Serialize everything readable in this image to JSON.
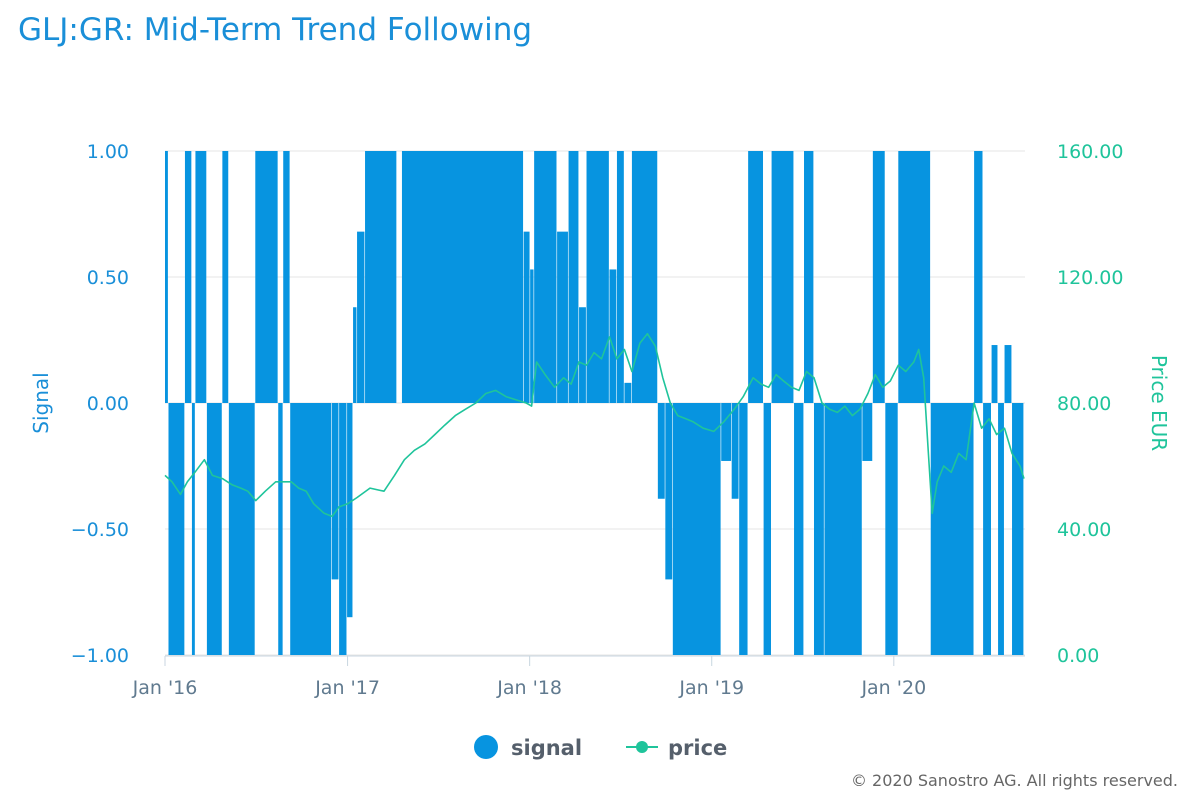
{
  "colors": {
    "signal": "#0794e0",
    "price": "#1fc49b",
    "title": "#1a8fd8",
    "grid": "#e6e6e6",
    "axis_text": "#1a8fd8",
    "x_text": "#607a8f"
  },
  "copyright": "© 2020 Sanostro AG. All rights reserved.",
  "chart_data": {
    "type": "bar+line",
    "title": "GLJ:GR: Mid-Term Trend Following",
    "y_left": {
      "label": "Signal",
      "range": [
        -1,
        1
      ],
      "ticks": [
        "1.00",
        "0.50",
        "0.00",
        "−0.50",
        "−1.00"
      ]
    },
    "y_right": {
      "label": "Price EUR",
      "range": [
        0,
        160
      ],
      "ticks": [
        "160.00",
        "120.00",
        "80.00",
        "40.00",
        "0.00"
      ]
    },
    "x_axis": {
      "range": [
        "2016-01-01",
        "2020-09-20"
      ],
      "ticks": [
        {
          "date": "2016-01-01",
          "label": "Jan '16"
        },
        {
          "date": "2017-01-01",
          "label": "Jan '17"
        },
        {
          "date": "2018-01-01",
          "label": "Jan '18"
        },
        {
          "date": "2019-01-01",
          "label": "Jan '19"
        },
        {
          "date": "2020-01-01",
          "label": "Jan '20"
        }
      ]
    },
    "legend": {
      "position": "bottom-center",
      "items": [
        "signal",
        "price"
      ]
    },
    "series": [
      {
        "name": "signal",
        "type": "column",
        "segments": [
          {
            "from": "2016-01-01",
            "to": "2016-01-08",
            "value": 1
          },
          {
            "from": "2016-01-08",
            "to": "2016-02-10",
            "value": -1
          },
          {
            "from": "2016-02-10",
            "to": "2016-02-24",
            "value": 1
          },
          {
            "from": "2016-02-24",
            "to": "2016-03-02",
            "value": -1
          },
          {
            "from": "2016-03-02",
            "to": "2016-03-25",
            "value": 1
          },
          {
            "from": "2016-03-25",
            "to": "2016-04-25",
            "value": -1
          },
          {
            "from": "2016-04-25",
            "to": "2016-05-08",
            "value": 1
          },
          {
            "from": "2016-05-08",
            "to": "2016-06-30",
            "value": -1
          },
          {
            "from": "2016-06-30",
            "to": "2016-08-15",
            "value": 1
          },
          {
            "from": "2016-08-15",
            "to": "2016-08-25",
            "value": -1
          },
          {
            "from": "2016-08-25",
            "to": "2016-09-08",
            "value": 1
          },
          {
            "from": "2016-09-08",
            "to": "2016-11-30",
            "value": -1
          },
          {
            "from": "2016-11-30",
            "to": "2016-12-15",
            "value": -0.7
          },
          {
            "from": "2016-12-15",
            "to": "2016-12-31",
            "value": -1
          },
          {
            "from": "2016-12-31",
            "to": "2017-01-12",
            "value": -0.85
          },
          {
            "from": "2017-01-12",
            "to": "2017-01-20",
            "value": 0.38
          },
          {
            "from": "2017-01-20",
            "to": "2017-02-05",
            "value": 0.68
          },
          {
            "from": "2017-02-05",
            "to": "2017-04-10",
            "value": 1
          },
          {
            "from": "2017-04-10",
            "to": "2017-04-20",
            "value": 0
          },
          {
            "from": "2017-04-20",
            "to": "2017-12-20",
            "value": 1
          },
          {
            "from": "2017-12-20",
            "to": "2018-01-02",
            "value": 0.68
          },
          {
            "from": "2018-01-02",
            "to": "2018-01-10",
            "value": 0.53
          },
          {
            "from": "2018-01-10",
            "to": "2018-02-25",
            "value": 1
          },
          {
            "from": "2018-02-25",
            "to": "2018-03-20",
            "value": 0.68
          },
          {
            "from": "2018-03-20",
            "to": "2018-04-10",
            "value": 1
          },
          {
            "from": "2018-04-10",
            "to": "2018-04-25",
            "value": 0.38
          },
          {
            "from": "2018-04-25",
            "to": "2018-06-10",
            "value": 1
          },
          {
            "from": "2018-06-10",
            "to": "2018-06-25",
            "value": 0.53
          },
          {
            "from": "2018-06-25",
            "to": "2018-07-10",
            "value": 1
          },
          {
            "from": "2018-07-10",
            "to": "2018-07-25",
            "value": 0.08
          },
          {
            "from": "2018-07-25",
            "to": "2018-09-15",
            "value": 1
          },
          {
            "from": "2018-09-15",
            "to": "2018-09-30",
            "value": -0.38
          },
          {
            "from": "2018-09-30",
            "to": "2018-10-15",
            "value": -0.7
          },
          {
            "from": "2018-10-15",
            "to": "2019-01-20",
            "value": -1
          },
          {
            "from": "2019-01-20",
            "to": "2019-02-10",
            "value": -0.23
          },
          {
            "from": "2019-02-10",
            "to": "2019-02-25",
            "value": -0.38
          },
          {
            "from": "2019-02-25",
            "to": "2019-03-15",
            "value": -1
          },
          {
            "from": "2019-03-15",
            "to": "2019-04-15",
            "value": 1
          },
          {
            "from": "2019-04-15",
            "to": "2019-05-01",
            "value": -1
          },
          {
            "from": "2019-05-01",
            "to": "2019-06-15",
            "value": 1
          },
          {
            "from": "2019-06-15",
            "to": "2019-07-05",
            "value": -1
          },
          {
            "from": "2019-07-05",
            "to": "2019-07-25",
            "value": 1
          },
          {
            "from": "2019-07-25",
            "to": "2019-08-15",
            "value": -1
          },
          {
            "from": "2019-08-15",
            "to": "2019-10-30",
            "value": -1
          },
          {
            "from": "2019-10-30",
            "to": "2019-11-20",
            "value": -0.23
          },
          {
            "from": "2019-11-20",
            "to": "2019-12-15",
            "value": 1
          },
          {
            "from": "2019-12-15",
            "to": "2020-01-10",
            "value": -1
          },
          {
            "from": "2020-01-10",
            "to": "2020-03-15",
            "value": 1
          },
          {
            "from": "2020-03-15",
            "to": "2020-06-10",
            "value": -1
          },
          {
            "from": "2020-06-10",
            "to": "2020-06-28",
            "value": 1
          },
          {
            "from": "2020-06-28",
            "to": "2020-07-15",
            "value": -1
          },
          {
            "from": "2020-07-15",
            "to": "2020-07-28",
            "value": 0.23
          },
          {
            "from": "2020-07-28",
            "to": "2020-08-10",
            "value": -1
          },
          {
            "from": "2020-08-10",
            "to": "2020-08-25",
            "value": 0.23
          },
          {
            "from": "2020-08-25",
            "to": "2020-09-18",
            "value": -1
          }
        ]
      },
      {
        "name": "price",
        "type": "line",
        "points": [
          [
            "2016-01-01",
            57
          ],
          [
            "2016-01-15",
            55
          ],
          [
            "2016-02-01",
            51
          ],
          [
            "2016-02-15",
            55
          ],
          [
            "2016-03-01",
            58
          ],
          [
            "2016-03-20",
            62
          ],
          [
            "2016-04-05",
            57
          ],
          [
            "2016-04-25",
            56
          ],
          [
            "2016-05-15",
            54
          ],
          [
            "2016-06-01",
            53
          ],
          [
            "2016-06-15",
            52
          ],
          [
            "2016-07-01",
            49
          ],
          [
            "2016-07-20",
            52
          ],
          [
            "2016-08-10",
            55
          ],
          [
            "2016-08-25",
            55
          ],
          [
            "2016-09-10",
            55
          ],
          [
            "2016-09-25",
            53
          ],
          [
            "2016-10-10",
            52
          ],
          [
            "2016-10-25",
            48
          ],
          [
            "2016-11-15",
            45
          ],
          [
            "2016-12-01",
            44
          ],
          [
            "2016-12-15",
            47
          ],
          [
            "2017-01-01",
            48
          ],
          [
            "2017-01-20",
            50
          ],
          [
            "2017-02-15",
            53
          ],
          [
            "2017-03-15",
            52
          ],
          [
            "2017-04-05",
            57
          ],
          [
            "2017-04-25",
            62
          ],
          [
            "2017-05-15",
            65
          ],
          [
            "2017-06-05",
            67
          ],
          [
            "2017-06-25",
            70
          ],
          [
            "2017-07-15",
            73
          ],
          [
            "2017-08-05",
            76
          ],
          [
            "2017-08-25",
            78
          ],
          [
            "2017-09-15",
            80
          ],
          [
            "2017-10-05",
            83
          ],
          [
            "2017-10-25",
            84
          ],
          [
            "2017-11-15",
            82
          ],
          [
            "2017-12-05",
            81
          ],
          [
            "2017-12-25",
            80
          ],
          [
            "2018-01-05",
            79
          ],
          [
            "2018-01-15",
            93
          ],
          [
            "2018-02-01",
            89
          ],
          [
            "2018-02-20",
            85
          ],
          [
            "2018-03-10",
            88
          ],
          [
            "2018-03-25",
            86
          ],
          [
            "2018-04-10",
            93
          ],
          [
            "2018-04-25",
            92
          ],
          [
            "2018-05-10",
            96
          ],
          [
            "2018-05-25",
            94
          ],
          [
            "2018-06-10",
            101
          ],
          [
            "2018-06-25",
            94
          ],
          [
            "2018-07-10",
            97
          ],
          [
            "2018-07-25",
            90
          ],
          [
            "2018-08-10",
            99
          ],
          [
            "2018-08-25",
            102
          ],
          [
            "2018-09-10",
            98
          ],
          [
            "2018-09-25",
            88
          ],
          [
            "2018-10-10",
            80
          ],
          [
            "2018-10-25",
            76
          ],
          [
            "2018-11-10",
            75
          ],
          [
            "2018-11-25",
            74
          ],
          [
            "2018-12-15",
            72
          ],
          [
            "2019-01-05",
            71
          ],
          [
            "2019-01-25",
            74
          ],
          [
            "2019-02-15",
            78
          ],
          [
            "2019-03-05",
            82
          ],
          [
            "2019-03-25",
            88
          ],
          [
            "2019-04-10",
            86
          ],
          [
            "2019-04-25",
            85
          ],
          [
            "2019-05-10",
            89
          ],
          [
            "2019-05-25",
            87
          ],
          [
            "2019-06-10",
            85
          ],
          [
            "2019-06-25",
            84
          ],
          [
            "2019-07-10",
            90
          ],
          [
            "2019-07-25",
            88
          ],
          [
            "2019-08-10",
            80
          ],
          [
            "2019-08-25",
            78
          ],
          [
            "2019-09-10",
            77
          ],
          [
            "2019-09-25",
            79
          ],
          [
            "2019-10-10",
            76
          ],
          [
            "2019-10-25",
            78
          ],
          [
            "2019-11-10",
            83
          ],
          [
            "2019-11-25",
            89
          ],
          [
            "2019-12-10",
            85
          ],
          [
            "2019-12-25",
            87
          ],
          [
            "2020-01-10",
            92
          ],
          [
            "2020-01-25",
            90
          ],
          [
            "2020-02-10",
            93
          ],
          [
            "2020-02-20",
            97
          ],
          [
            "2020-03-01",
            88
          ],
          [
            "2020-03-10",
            65
          ],
          [
            "2020-03-18",
            45
          ],
          [
            "2020-03-28",
            55
          ],
          [
            "2020-04-10",
            60
          ],
          [
            "2020-04-25",
            58
          ],
          [
            "2020-05-10",
            64
          ],
          [
            "2020-05-25",
            62
          ],
          [
            "2020-06-10",
            80
          ],
          [
            "2020-06-25",
            72
          ],
          [
            "2020-07-10",
            75
          ],
          [
            "2020-07-25",
            70
          ],
          [
            "2020-08-10",
            72
          ],
          [
            "2020-08-25",
            64
          ],
          [
            "2020-09-10",
            60
          ],
          [
            "2020-09-18",
            56
          ]
        ]
      }
    ]
  }
}
